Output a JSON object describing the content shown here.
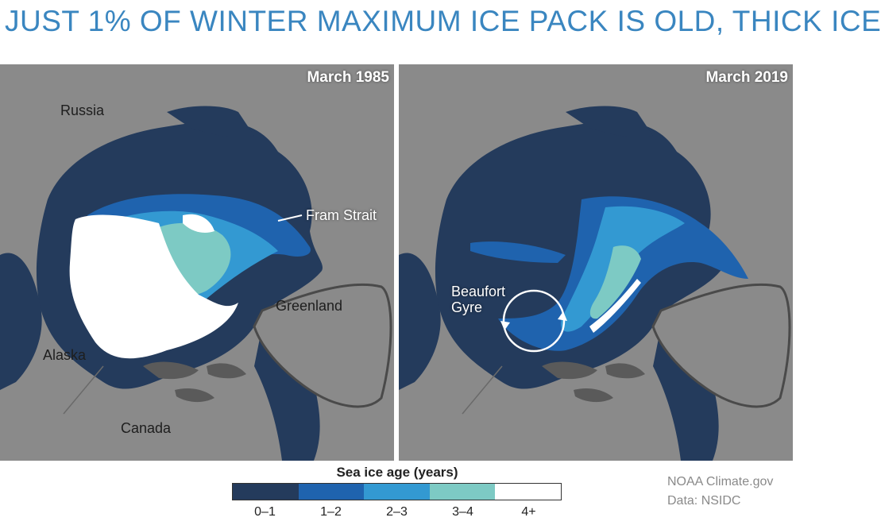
{
  "title": "JUST 1% OF WINTER MAXIMUM ICE PACK IS OLD, THICK ICE",
  "colors": {
    "land": "#8a8a8a",
    "ocean_open": "#5a5a5a",
    "outline": "#4a4a4a"
  },
  "panels": [
    {
      "date": "March 1985",
      "labels": {
        "russia": "Russia",
        "fram_strait": "Fram Strait",
        "greenland": "Greenland",
        "alaska": "Alaska",
        "canada": "Canada"
      }
    },
    {
      "date": "March 2019",
      "labels": {
        "beaufort_gyre": "Beaufort Gyre"
      }
    }
  ],
  "legend": {
    "title": "Sea ice age (years)",
    "categories": [
      {
        "label": "0–1",
        "color": "#243b5c"
      },
      {
        "label": "1–2",
        "color": "#1f63ae"
      },
      {
        "label": "2–3",
        "color": "#3399d2"
      },
      {
        "label": "3–4",
        "color": "#7dcac4"
      },
      {
        "label": "4+",
        "color": "#ffffff"
      }
    ]
  },
  "credits": {
    "line1": "NOAA  Climate.gov",
    "line2": "Data: NSIDC"
  }
}
